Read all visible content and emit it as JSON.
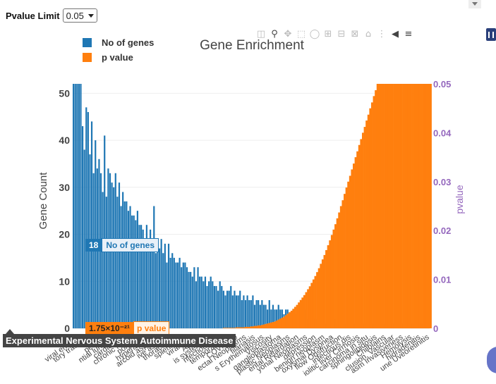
{
  "controls": {
    "pvalue_limit_label": "Pvalue Limit",
    "pvalue_limit_value": "0.05"
  },
  "modebar": {
    "icons": [
      "camera-icon",
      "zoom-icon",
      "pan-icon",
      "box-select-icon",
      "lasso-icon",
      "zoom-in-icon",
      "zoom-out-icon",
      "autoscale-icon",
      "reset-axes-icon",
      "spike-lines-icon",
      "hover-closest-icon",
      "hover-compare-icon"
    ]
  },
  "chart_data": {
    "type": "bar",
    "title": "Gene Enrichment",
    "ylabel": "Gene Count",
    "y2label": "pvalue",
    "ylim": [
      0,
      52
    ],
    "y2lim": [
      0,
      0.05
    ],
    "yticks": [
      0,
      10,
      20,
      30,
      40,
      50
    ],
    "y2ticks": [
      0,
      0.01,
      0.02,
      0.03,
      0.04,
      0.05
    ],
    "y2ticklabels": [
      "0",
      "0.01",
      "0.02",
      "0.03",
      "0.04",
      "0.05"
    ],
    "legend_position": "top-left",
    "grid": true,
    "colors": {
      "genes": "#1f77b4",
      "pvalue": "#ff7f0e",
      "y2axis": "#9467bd"
    },
    "series": [
      {
        "name": "No of genes",
        "axis": "y",
        "values": [
          52,
          52,
          52,
          52,
          52,
          43,
          38,
          47,
          46,
          37,
          44,
          33,
          40,
          34,
          36,
          33,
          29,
          41,
          28,
          34,
          33,
          31,
          30,
          33,
          28,
          31,
          26,
          29,
          27,
          27,
          25,
          26,
          24,
          24,
          23,
          25,
          22,
          22,
          21,
          19,
          22,
          19,
          21,
          18,
          26,
          16,
          17,
          17,
          19,
          16,
          18,
          14,
          18,
          15,
          16,
          15,
          14,
          14,
          15,
          13,
          14,
          14,
          13,
          12,
          12,
          11,
          13,
          10,
          13,
          11,
          11,
          10,
          11,
          9,
          10,
          11,
          10,
          9,
          9,
          8,
          10,
          9,
          8,
          7,
          8,
          8,
          9,
          7,
          8,
          7,
          7,
          8,
          6,
          7,
          6,
          7,
          6,
          6,
          7,
          5,
          6,
          6,
          5,
          6,
          5,
          5,
          4,
          6,
          4,
          5,
          4,
          4,
          5,
          4,
          4,
          3,
          4,
          4,
          3,
          3,
          4,
          3,
          3,
          3,
          3,
          2,
          2,
          4,
          2,
          3,
          2,
          2,
          2,
          2,
          1,
          2,
          2,
          2,
          1,
          2,
          1,
          1,
          1,
          2,
          1,
          1,
          1,
          1,
          1,
          1,
          1,
          2,
          1,
          1,
          1,
          1,
          2,
          1,
          1,
          1,
          1,
          1,
          1,
          1,
          1,
          1,
          1,
          1,
          1,
          1,
          1,
          1,
          1,
          1,
          1,
          1,
          1,
          1,
          1,
          1,
          1,
          1,
          1,
          1,
          1,
          1,
          1,
          1,
          1,
          1,
          1,
          1,
          1,
          1,
          1
        ]
      },
      {
        "name": "p value",
        "axis": "y2",
        "values": [
          0,
          0,
          0,
          0,
          0,
          0,
          0,
          0,
          0,
          0,
          0,
          0,
          0,
          0,
          0,
          0,
          0,
          0,
          0,
          0,
          0,
          0,
          0,
          0,
          0,
          0,
          0,
          0,
          0,
          0,
          0,
          0,
          0,
          0,
          0,
          0,
          0,
          0,
          0,
          0,
          0,
          0,
          0,
          0,
          0,
          0,
          0,
          0,
          0,
          0,
          0,
          0,
          0,
          0,
          0,
          0,
          0,
          0,
          0,
          0,
          0,
          0,
          0,
          0,
          0,
          0,
          0,
          0,
          0,
          0,
          0,
          0,
          0,
          0,
          0,
          0,
          0,
          0,
          0,
          0,
          0,
          0,
          0.0001,
          0.0001,
          0.0001,
          0.0001,
          0.0001,
          0.0001,
          0.0001,
          0.0002,
          0.0002,
          0.0002,
          0.0002,
          0.0002,
          0.0003,
          0.0003,
          0.0003,
          0.0004,
          0.0004,
          0.0005,
          0.0005,
          0.0006,
          0.0006,
          0.0007,
          0.0008,
          0.0009,
          0.001,
          0.0011,
          0.0012,
          0.0013,
          0.0014,
          0.0016,
          0.0018,
          0.002,
          0.0022,
          0.0024,
          0.0027,
          0.003,
          0.0033,
          0.0036,
          0.004,
          0.0044,
          0.0048,
          0.0053,
          0.0058,
          0.0063,
          0.0068,
          0.0074,
          0.008,
          0.0086,
          0.0093,
          0.01,
          0.0107,
          0.0115,
          0.0123,
          0.0132,
          0.0141,
          0.015,
          0.016,
          0.017,
          0.018,
          0.0191,
          0.0202,
          0.0213,
          0.0225,
          0.0237,
          0.025,
          0.0262,
          0.0275,
          0.0288,
          0.03,
          0.0312,
          0.0325,
          0.0337,
          0.035,
          0.0362,
          0.0375,
          0.0387,
          0.04,
          0.0412,
          0.0425,
          0.0437,
          0.045,
          0.0462,
          0.0475,
          0.0487,
          0.05,
          0.05,
          0.05,
          0.05,
          0.05,
          0.05,
          0.05,
          0.05,
          0.05,
          0.05,
          0.05,
          0.05,
          0.05,
          0.05,
          0.05,
          0.05,
          0.05,
          0.05,
          0.05,
          0.05,
          0.05,
          0.05,
          0.05,
          0.05,
          0.05,
          0.05,
          0.05,
          0.05,
          0.05,
          0.05
        ]
      }
    ],
    "x_tick_labels": [
      "viral enceph",
      "tory tract dis",
      "tauo",
      "periodo",
      "ntial lung dis",
      "cardiomyo",
      "chronic hepat",
      "polynycl",
      "hyperact ca",
      "arcoid aspergil",
      "ive asperg",
      "thoracic dis",
      "splenic dis",
      "viral men",
      "Autism",
      "is system dis",
      "nfectious dis",
      "temporal arte",
      "COVID-19",
      "ectal Neoplasms",
      "filariasis",
      "s Erythematosus",
      "Viscosity",
      "ganglioblastoma",
      "plastic Neoplasms",
      "ental Retardation",
      "yonal Neoplasms",
      "depression",
      "benign neoplasm",
      "oxysmal Dyspnea",
      "flow Obstruction",
      "infectious dis",
      "iolitic liver Cirrhosis",
      "carcinoma in situ",
      "sphingolipidosis",
      "Chilblains",
      "clusion, Vascular",
      "asm Invasiveness",
      "Hemolysis",
      "hidradenitis",
      "une Uveoretinitis"
    ],
    "hover": {
      "genes_value": "18",
      "genes_label": "No of genes",
      "pvalue_value": "1.75×10⁻²¹",
      "pvalue_label": "p value",
      "x_label": "Experimental Nervous System Autoimmune Disease"
    }
  }
}
